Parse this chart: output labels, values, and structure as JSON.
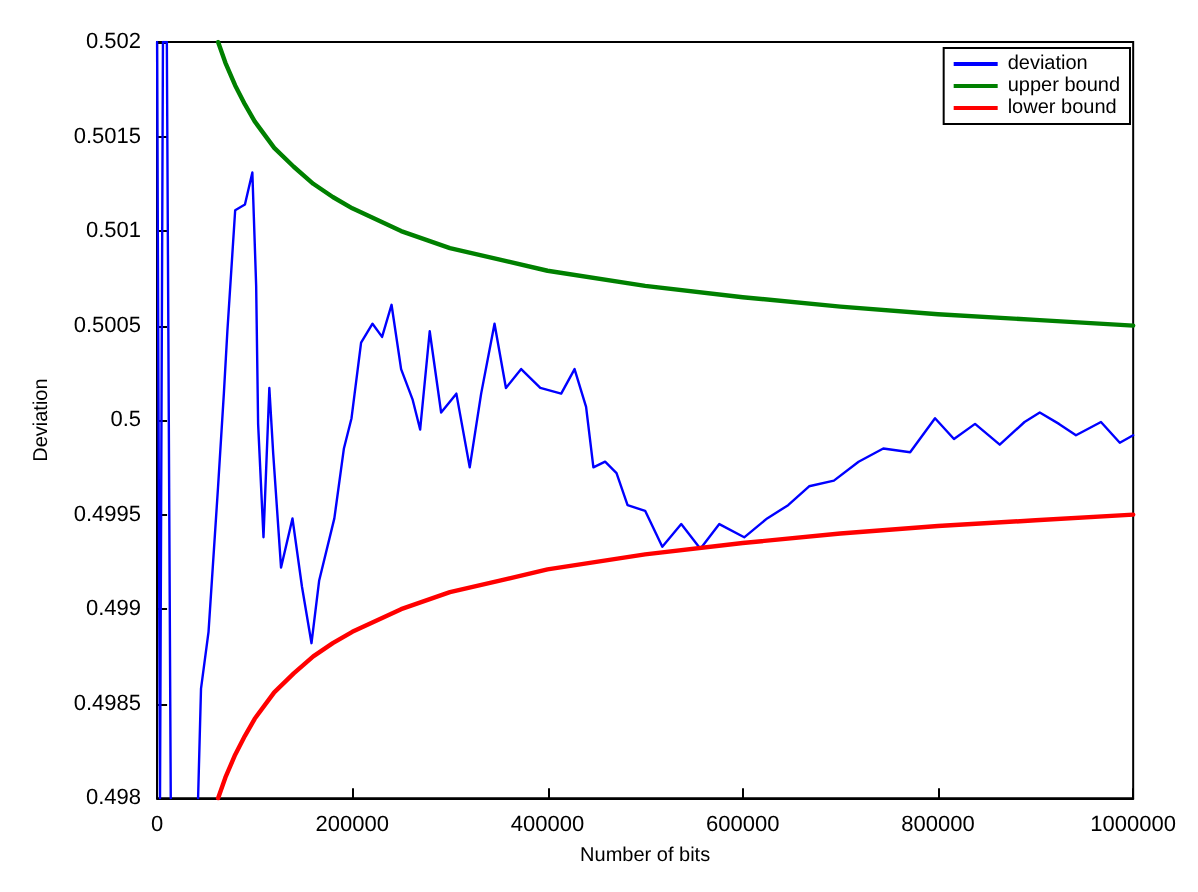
{
  "chart_data": {
    "type": "line",
    "xlabel": "Number of bits",
    "ylabel": "Deviation",
    "xlim": [
      0,
      1000000
    ],
    "ylim": [
      0.498,
      0.502
    ],
    "xticks": [
      0,
      200000,
      400000,
      600000,
      800000,
      1000000
    ],
    "yticks": [
      0.498,
      0.4985,
      0.499,
      0.4995,
      0.5,
      0.5005,
      0.501,
      0.5015,
      0.502
    ],
    "grid": false,
    "legend": "top right",
    "marker": "none",
    "line_style": "solid",
    "series": [
      {
        "name": "deviation",
        "color": "#0000ff",
        "x": [
          0,
          3000,
          6000,
          10000,
          14000,
          30000,
          42000,
          45000,
          52700,
          62500,
          68400,
          72000,
          80000,
          90000,
          97600,
          101500,
          103500,
          109000,
          115000,
          119000,
          127000,
          138700,
          148400,
          158200,
          166000,
          181600,
          191400,
          199200,
          209000,
          220700,
          230500,
          240200,
          250000,
          261700,
          269500,
          279300,
          291000,
          306600,
          320300,
          332000,
          345700,
          357400,
          373000,
          392600,
          414000,
          427700,
          439500,
          447000,
          459000,
          470700,
          482000,
          500000,
          517600,
          537000,
          556600,
          576000,
          601500,
          625000,
          646500,
          668000,
          693400,
          718700,
          744000,
          771500,
          797000,
          816400,
          838000,
          863300,
          888700,
          904300,
          924000,
          941400,
          967000,
          986300,
          1000000
        ],
        "values": [
          0.502,
          0.498,
          0.502,
          0.502,
          0.498,
          null,
          0.498,
          0.49858,
          0.49888,
          0.49965,
          0.50014,
          0.50047,
          0.50111,
          0.50114,
          0.50131,
          0.50071,
          0.49998,
          0.49938,
          0.50017,
          0.49982,
          0.49922,
          0.49948,
          0.49912,
          0.49882,
          0.49915,
          0.49948,
          0.49985,
          0.50001,
          0.50041,
          0.50051,
          0.50044,
          0.50061,
          0.50027,
          0.50011,
          0.49995,
          0.50047,
          0.50004,
          0.50014,
          0.49975,
          0.50014,
          0.50051,
          0.50017,
          0.50027,
          0.50017,
          0.50014,
          0.50027,
          0.50007,
          0.49975,
          0.49978,
          0.49972,
          0.49955,
          0.49952,
          0.49933,
          0.49945,
          0.49932,
          0.49945,
          0.49938,
          0.49948,
          0.49955,
          0.49965,
          0.49968,
          0.49978,
          0.49985,
          0.49983,
          0.50001,
          0.4999,
          0.49998,
          0.49987,
          0.49999,
          0.50004,
          0.49998,
          0.49992,
          0.49999,
          0.49988,
          0.49992
        ]
      },
      {
        "name": "upper bound",
        "color": "#008000",
        "x": [
          62500,
          70000,
          80000,
          90000,
          100000,
          120000,
          140000,
          160000,
          180000,
          200000,
          250000,
          300000,
          350000,
          400000,
          500000,
          600000,
          700000,
          800000,
          900000,
          1000000
        ],
        "values": [
          0.502,
          0.50189,
          0.50177,
          0.50167,
          0.50158,
          0.50144,
          0.50134,
          0.50125,
          0.50118,
          0.50112,
          0.501,
          0.50091,
          0.50085,
          0.50079,
          0.50071,
          0.50065,
          0.5006,
          0.50056,
          0.50053,
          0.5005
        ]
      },
      {
        "name": "lower bound",
        "color": "#ff0000",
        "x": [
          62500,
          70000,
          80000,
          90000,
          100000,
          120000,
          140000,
          160000,
          180000,
          200000,
          250000,
          300000,
          350000,
          400000,
          500000,
          600000,
          700000,
          800000,
          900000,
          1000000
        ],
        "values": [
          0.498,
          0.49811,
          0.49823,
          0.49833,
          0.49842,
          0.49856,
          0.49866,
          0.49875,
          0.49882,
          0.49888,
          0.499,
          0.49909,
          0.49915,
          0.49921,
          0.49929,
          0.49935,
          0.4994,
          0.49944,
          0.49947,
          0.4995
        ]
      }
    ]
  }
}
